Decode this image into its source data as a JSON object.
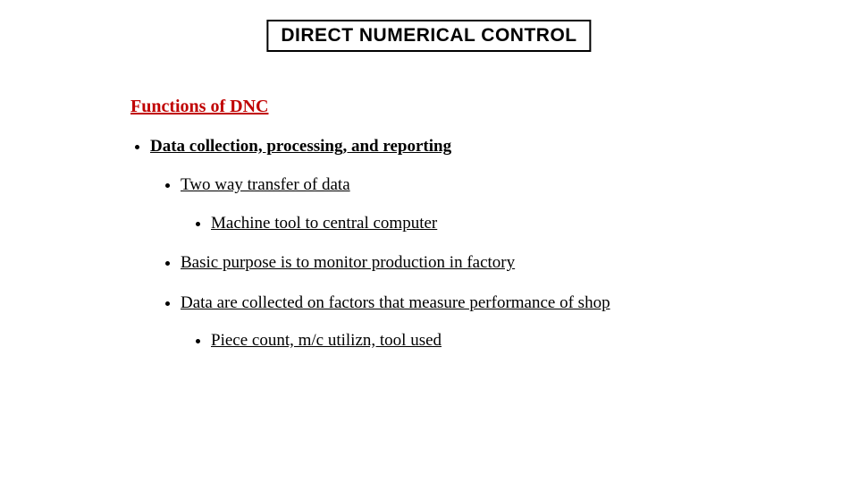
{
  "title": "DIRECT NUMERICAL CONTROL",
  "section_heading": "Functions of DNC",
  "bullets": {
    "l1_item": "Data collection, processing, and reporting",
    "l2_a": "Two way transfer of data",
    "l3_a": "Machine tool to central computer",
    "l2_b": "Basic purpose is to monitor production in factory",
    "l2_c": "Data are collected on factors that measure performance of shop",
    "l3_b": "Piece count,  m/c utilizn, tool used"
  },
  "colors": {
    "heading": "#c00000",
    "text": "#000000",
    "background": "#ffffff",
    "border": "#000000"
  },
  "typography": {
    "title_font": "Arial",
    "body_font": "Times New Roman",
    "title_fontsize_pt": 16,
    "heading_fontsize_pt": 15,
    "body_fontsize_pt": 14
  }
}
